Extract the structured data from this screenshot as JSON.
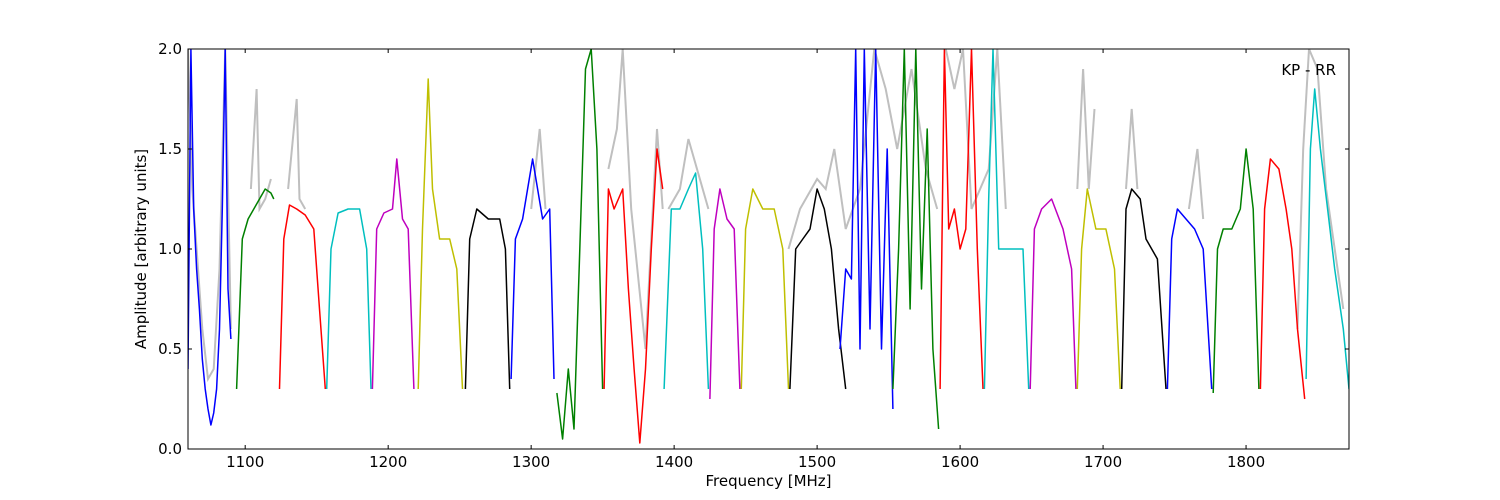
{
  "chart_data": {
    "type": "line",
    "annotation": "KP - RR",
    "xlabel": "Frequency [MHz]",
    "ylabel": "Amplitude [arbitrary units]",
    "xlim": [
      1060,
      1872
    ],
    "ylim": [
      0.0,
      2.0
    ],
    "x_ticks": [
      1100,
      1200,
      1300,
      1400,
      1500,
      1600,
      1700,
      1800
    ],
    "x_tick_labels": [
      "1100",
      "1200",
      "1300",
      "1400",
      "1500",
      "1600",
      "1700",
      "1800"
    ],
    "y_ticks": [
      0.0,
      0.5,
      1.0,
      1.5,
      2.0
    ],
    "y_tick_labels": [
      "0.0",
      "0.5",
      "1.0",
      "1.5",
      "2.0"
    ],
    "grid": false,
    "raw_color": "#bfbfbf",
    "band_colors": [
      "#0000ff",
      "#008000",
      "#ff0000",
      "#00bfbf",
      "#bf00bf",
      "#bfbf00",
      "#000000"
    ],
    "bands": [
      {
        "x": [
          1060,
          1062,
          1064,
          1066,
          1068,
          1070,
          1072,
          1074,
          1076,
          1078,
          1080,
          1082,
          1084,
          1086,
          1088,
          1090
        ],
        "y": [
          0.4,
          2.0,
          1.2,
          0.9,
          0.7,
          0.45,
          0.3,
          0.2,
          0.12,
          0.18,
          0.3,
          0.6,
          1.2,
          2.0,
          0.8,
          0.55
        ],
        "color": 0
      },
      {
        "x": [
          1094,
          1098,
          1102,
          1106,
          1110,
          1114,
          1118,
          1120
        ],
        "y": [
          0.3,
          1.05,
          1.15,
          1.2,
          1.25,
          1.3,
          1.28,
          1.25
        ],
        "color": 1
      },
      {
        "x": [
          1124,
          1127,
          1131,
          1136,
          1142,
          1148,
          1152,
          1156
        ],
        "y": [
          0.3,
          1.05,
          1.22,
          1.2,
          1.17,
          1.1,
          0.7,
          0.3
        ],
        "color": 2
      },
      {
        "x": [
          1157,
          1160,
          1165,
          1172,
          1180,
          1185,
          1188
        ],
        "y": [
          0.3,
          1.0,
          1.18,
          1.2,
          1.2,
          1.0,
          0.3
        ],
        "color": 3
      },
      {
        "x": [
          1189,
          1192,
          1197,
          1203,
          1206,
          1210,
          1214,
          1218
        ],
        "y": [
          0.3,
          1.1,
          1.18,
          1.2,
          1.45,
          1.15,
          1.1,
          0.3
        ],
        "color": 4
      },
      {
        "x": [
          1221,
          1224,
          1228,
          1231,
          1236,
          1243,
          1248,
          1252
        ],
        "y": [
          0.3,
          1.1,
          1.85,
          1.3,
          1.05,
          1.05,
          0.9,
          0.3
        ],
        "color": 5
      },
      {
        "x": [
          1254,
          1257,
          1262,
          1270,
          1278,
          1282,
          1285
        ],
        "y": [
          0.3,
          1.05,
          1.2,
          1.15,
          1.15,
          1.0,
          0.3
        ],
        "color": 6
      },
      {
        "x": [
          1286,
          1289,
          1294,
          1301,
          1308,
          1313,
          1316
        ],
        "y": [
          0.35,
          1.05,
          1.15,
          1.45,
          1.15,
          1.2,
          0.35
        ],
        "color": 0
      },
      {
        "x": [
          1318,
          1322,
          1326,
          1330,
          1334,
          1338,
          1342,
          1346,
          1350
        ],
        "y": [
          0.28,
          0.05,
          0.4,
          0.1,
          1.0,
          1.9,
          2.0,
          1.5,
          0.3
        ],
        "color": 1
      },
      {
        "x": [
          1351,
          1354,
          1358,
          1364,
          1368,
          1372,
          1376,
          1380,
          1384,
          1388,
          1392
        ],
        "y": [
          0.3,
          1.3,
          1.2,
          1.3,
          0.8,
          0.4,
          0.03,
          0.4,
          1.0,
          1.5,
          1.3
        ],
        "color": 2
      },
      {
        "x": [
          1393,
          1398,
          1404,
          1410,
          1415,
          1420,
          1424
        ],
        "y": [
          0.3,
          1.2,
          1.2,
          1.3,
          1.38,
          1.0,
          0.3
        ],
        "color": 3
      },
      {
        "x": [
          1425,
          1428,
          1432,
          1437,
          1442,
          1446
        ],
        "y": [
          0.25,
          1.1,
          1.3,
          1.15,
          1.1,
          0.3
        ],
        "color": 4
      },
      {
        "x": [
          1447,
          1450,
          1455,
          1462,
          1470,
          1476,
          1480
        ],
        "y": [
          0.3,
          1.1,
          1.3,
          1.2,
          1.2,
          1.0,
          0.3
        ],
        "color": 5
      },
      {
        "x": [
          1481,
          1485,
          1490,
          1495,
          1500,
          1505,
          1510,
          1515,
          1520
        ],
        "y": [
          0.3,
          1.0,
          1.05,
          1.1,
          1.3,
          1.2,
          1.0,
          0.6,
          0.3
        ],
        "color": 6
      },
      {
        "x": [
          1516,
          1520,
          1524,
          1527,
          1530,
          1533,
          1537,
          1541,
          1545,
          1549,
          1553
        ],
        "y": [
          0.5,
          0.9,
          0.85,
          2.0,
          0.5,
          2.0,
          0.6,
          2.0,
          0.5,
          1.5,
          0.2
        ],
        "color": 0
      },
      {
        "x": [
          1553,
          1557,
          1561,
          1565,
          1569,
          1573,
          1577,
          1581,
          1585
        ],
        "y": [
          0.3,
          1.0,
          2.0,
          0.7,
          2.0,
          0.8,
          1.6,
          0.5,
          0.1
        ],
        "color": 1
      },
      {
        "x": [
          1586,
          1589,
          1592,
          1596,
          1600,
          1604,
          1608,
          1612,
          1616
        ],
        "y": [
          0.3,
          2.0,
          1.1,
          1.2,
          1.0,
          1.1,
          2.0,
          1.0,
          0.3
        ],
        "color": 2
      },
      {
        "x": [
          1617,
          1620,
          1623,
          1627,
          1632,
          1638,
          1644,
          1648
        ],
        "y": [
          0.3,
          1.25,
          2.0,
          1.0,
          1.0,
          1.0,
          1.0,
          0.3
        ],
        "color": 3
      },
      {
        "x": [
          1649,
          1652,
          1657,
          1664,
          1672,
          1678,
          1681
        ],
        "y": [
          0.3,
          1.1,
          1.2,
          1.25,
          1.1,
          0.9,
          0.3
        ],
        "color": 4
      },
      {
        "x": [
          1682,
          1685,
          1689,
          1695,
          1702,
          1708,
          1712
        ],
        "y": [
          0.3,
          1.0,
          1.3,
          1.1,
          1.1,
          0.9,
          0.3
        ],
        "color": 5
      },
      {
        "x": [
          1713,
          1716,
          1720,
          1726,
          1730,
          1734,
          1738,
          1744
        ],
        "y": [
          0.3,
          1.2,
          1.3,
          1.25,
          1.05,
          1.0,
          0.95,
          0.3
        ],
        "color": 6
      },
      {
        "x": [
          1745,
          1748,
          1752,
          1758,
          1764,
          1770,
          1776
        ],
        "y": [
          0.3,
          1.05,
          1.2,
          1.15,
          1.1,
          1.0,
          0.3
        ],
        "color": 0
      },
      {
        "x": [
          1777,
          1780,
          1784,
          1790,
          1796,
          1800,
          1805,
          1809
        ],
        "y": [
          0.28,
          1.0,
          1.1,
          1.1,
          1.2,
          1.5,
          1.2,
          0.3
        ],
        "color": 1
      },
      {
        "x": [
          1810,
          1813,
          1817,
          1823,
          1828,
          1832,
          1836,
          1841
        ],
        "y": [
          0.3,
          1.2,
          1.45,
          1.4,
          1.2,
          1.0,
          0.6,
          0.25
        ],
        "color": 2
      },
      {
        "x": [
          1842,
          1845,
          1848,
          1852,
          1857,
          1862,
          1868,
          1872
        ],
        "y": [
          0.35,
          1.5,
          1.8,
          1.5,
          1.2,
          0.9,
          0.6,
          0.3
        ],
        "color": 3
      }
    ],
    "raw_overlay": [
      {
        "x": [
          1060,
          1063,
          1066,
          1070,
          1074,
          1078,
          1082,
          1086,
          1090
        ],
        "y": [
          2.0,
          1.3,
          1.0,
          0.6,
          0.35,
          0.4,
          0.9,
          2.0,
          0.6
        ]
      },
      {
        "x": [
          1104,
          1108,
          1110,
          1114,
          1118
        ],
        "y": [
          1.3,
          1.8,
          1.2,
          1.25,
          1.35
        ]
      },
      {
        "x": [
          1130,
          1136,
          1138,
          1142
        ],
        "y": [
          1.3,
          1.75,
          1.25,
          1.2
        ]
      },
      {
        "x": [
          1300,
          1306,
          1310
        ],
        "y": [
          1.2,
          1.6,
          1.2
        ]
      },
      {
        "x": [
          1354,
          1360,
          1364,
          1370,
          1380,
          1388,
          1392
        ],
        "y": [
          1.4,
          1.6,
          2.0,
          1.2,
          0.5,
          1.6,
          1.2
        ]
      },
      {
        "x": [
          1396,
          1404,
          1410,
          1416,
          1424
        ],
        "y": [
          1.2,
          1.3,
          1.55,
          1.4,
          1.2
        ]
      },
      {
        "x": [
          1480,
          1488,
          1496,
          1500,
          1506,
          1512,
          1520,
          1530,
          1540,
          1548,
          1556,
          1566,
          1576,
          1584
        ],
        "y": [
          1.0,
          1.2,
          1.3,
          1.35,
          1.3,
          1.5,
          1.1,
          1.3,
          2.0,
          1.8,
          1.5,
          1.9,
          1.4,
          1.2
        ]
      },
      {
        "x": [
          1590,
          1596,
          1602,
          1608,
          1614,
          1620,
          1626,
          1632
        ],
        "y": [
          2.0,
          1.8,
          2.0,
          1.2,
          1.3,
          1.4,
          2.0,
          1.2
        ]
      },
      {
        "x": [
          1682,
          1686,
          1690,
          1694
        ],
        "y": [
          1.3,
          1.9,
          1.3,
          1.7
        ]
      },
      {
        "x": [
          1716,
          1720,
          1724
        ],
        "y": [
          1.3,
          1.7,
          1.3
        ]
      },
      {
        "x": [
          1760,
          1766,
          1770
        ],
        "y": [
          1.2,
          1.5,
          1.15
        ]
      },
      {
        "x": [
          1836,
          1840,
          1844,
          1850,
          1856,
          1862,
          1868
        ],
        "y": [
          0.6,
          1.5,
          2.0,
          1.9,
          1.3,
          1.0,
          0.7
        ]
      }
    ]
  }
}
